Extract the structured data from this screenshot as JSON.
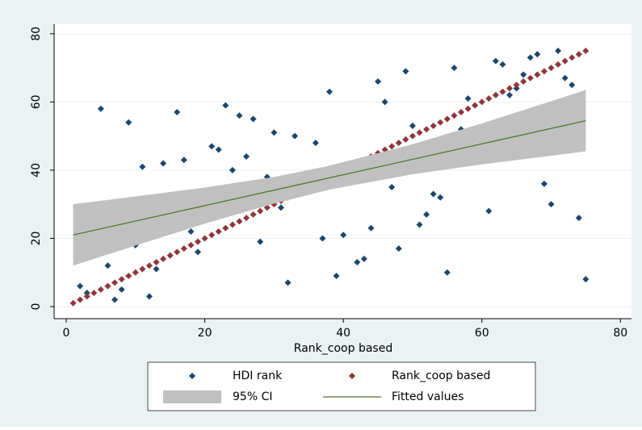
{
  "chart_data": {
    "type": "scatter",
    "xlabel": "Rank_coop based",
    "xlim": [
      -1.75,
      81.6
    ],
    "ylim": [
      -3.55,
      82.8
    ],
    "xticks": [
      0,
      20,
      40,
      60,
      80
    ],
    "yticks": [
      0,
      20,
      40,
      60,
      80
    ],
    "grid": true,
    "legend": "bottom",
    "series": [
      {
        "name": "HDI rank",
        "type": "scatter",
        "color": "#1a476f",
        "x": [
          2,
          3,
          5,
          6,
          7,
          8,
          9,
          10,
          11,
          12,
          13,
          14,
          16,
          17,
          18,
          19,
          21,
          22,
          23,
          24,
          25,
          26,
          27,
          28,
          29,
          30,
          31,
          32,
          33,
          36,
          37,
          38,
          39,
          40,
          42,
          43,
          44,
          45,
          46,
          47,
          48,
          49,
          50,
          51,
          52,
          53,
          54,
          55,
          56,
          57,
          58,
          61,
          62,
          63,
          64,
          65,
          66,
          67,
          68,
          69,
          70,
          71,
          72,
          73,
          74,
          75
        ],
        "values": [
          6,
          4,
          58,
          12,
          2,
          5,
          54,
          18,
          41,
          3,
          11,
          42,
          57,
          43,
          22,
          16,
          47,
          46,
          59,
          40,
          56,
          44,
          55,
          19,
          38,
          51,
          29,
          7,
          50,
          48,
          20,
          63,
          9,
          21,
          13,
          14,
          23,
          66,
          60,
          35,
          17,
          69,
          53,
          24,
          27,
          33,
          32,
          10,
          70,
          52,
          61,
          28,
          72,
          71,
          62,
          64,
          68,
          73,
          74,
          36,
          30,
          75,
          67,
          65,
          26,
          8
        ]
      },
      {
        "name": "Rank_coop based",
        "type": "scatter",
        "color": "#90353b",
        "x": [
          1,
          2,
          3,
          4,
          5,
          6,
          7,
          8,
          9,
          10,
          11,
          12,
          13,
          14,
          15,
          16,
          17,
          18,
          19,
          20,
          21,
          22,
          23,
          24,
          25,
          26,
          27,
          28,
          29,
          30,
          31,
          32,
          33,
          34,
          35,
          36,
          37,
          38,
          39,
          40,
          41,
          42,
          43,
          44,
          45,
          46,
          47,
          48,
          49,
          50,
          51,
          52,
          53,
          54,
          55,
          56,
          57,
          58,
          59,
          60,
          61,
          62,
          63,
          64,
          65,
          66,
          67,
          68,
          69,
          70,
          71,
          72,
          73,
          74,
          75
        ],
        "values": [
          1,
          2,
          3,
          4,
          5,
          6,
          7,
          8,
          9,
          10,
          11,
          12,
          13,
          14,
          15,
          16,
          17,
          18,
          19,
          20,
          21,
          22,
          23,
          24,
          25,
          26,
          27,
          28,
          29,
          30,
          31,
          32,
          33,
          34,
          35,
          36,
          37,
          38,
          39,
          40,
          41,
          42,
          43,
          44,
          45,
          46,
          47,
          48,
          49,
          50,
          51,
          52,
          53,
          54,
          55,
          56,
          57,
          58,
          59,
          60,
          61,
          62,
          63,
          64,
          65,
          66,
          67,
          68,
          69,
          70,
          71,
          72,
          73,
          74,
          75
        ]
      },
      {
        "name": "95% CI",
        "type": "area",
        "color": "#c0c0c0",
        "x": [
          1,
          10,
          20,
          30,
          38,
          50,
          60,
          75
        ],
        "lower": [
          12,
          17.9,
          24.3,
          30.2,
          34.3,
          38.8,
          41.7,
          45.5
        ],
        "upper": [
          30,
          32.3,
          34.9,
          38.0,
          41.3,
          47.6,
          53.7,
          63.5
        ]
      },
      {
        "name": "Fitted values",
        "type": "line",
        "color": "#55752f",
        "x": [
          1,
          75
        ],
        "values": [
          21,
          54.5
        ]
      }
    ]
  }
}
